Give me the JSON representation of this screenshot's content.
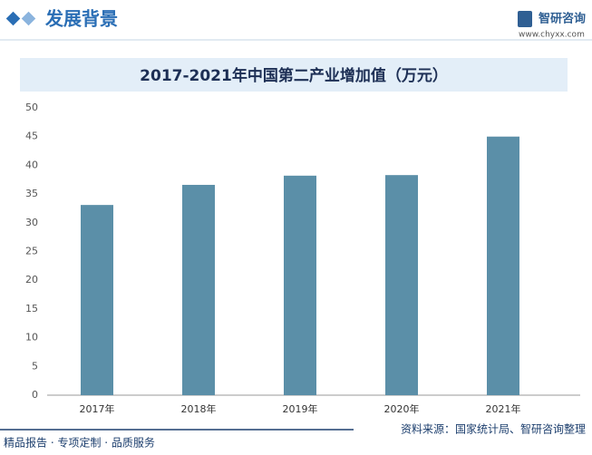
{
  "header": {
    "title": "发展背景",
    "logo": "智研咨询",
    "url": "www.chyxx.com"
  },
  "chart_data": {
    "type": "bar",
    "title": "2017-2021年中国第二产业增加值（万元）",
    "categories": [
      "2017年",
      "2018年",
      "2019年",
      "2020年",
      "2021年"
    ],
    "values": [
      33.1,
      36.6,
      38.2,
      38.3,
      45
    ],
    "color": "#5b8fa8",
    "ylim": [
      0,
      50
    ],
    "yticks": [
      0,
      5,
      10,
      15,
      20,
      25,
      30,
      35,
      40,
      45,
      50
    ],
    "grid": false
  },
  "footer": {
    "left": "精品报告 · 专项定制 · 品质服务",
    "source": "资料来源：国家统计局、智研咨询整理"
  }
}
